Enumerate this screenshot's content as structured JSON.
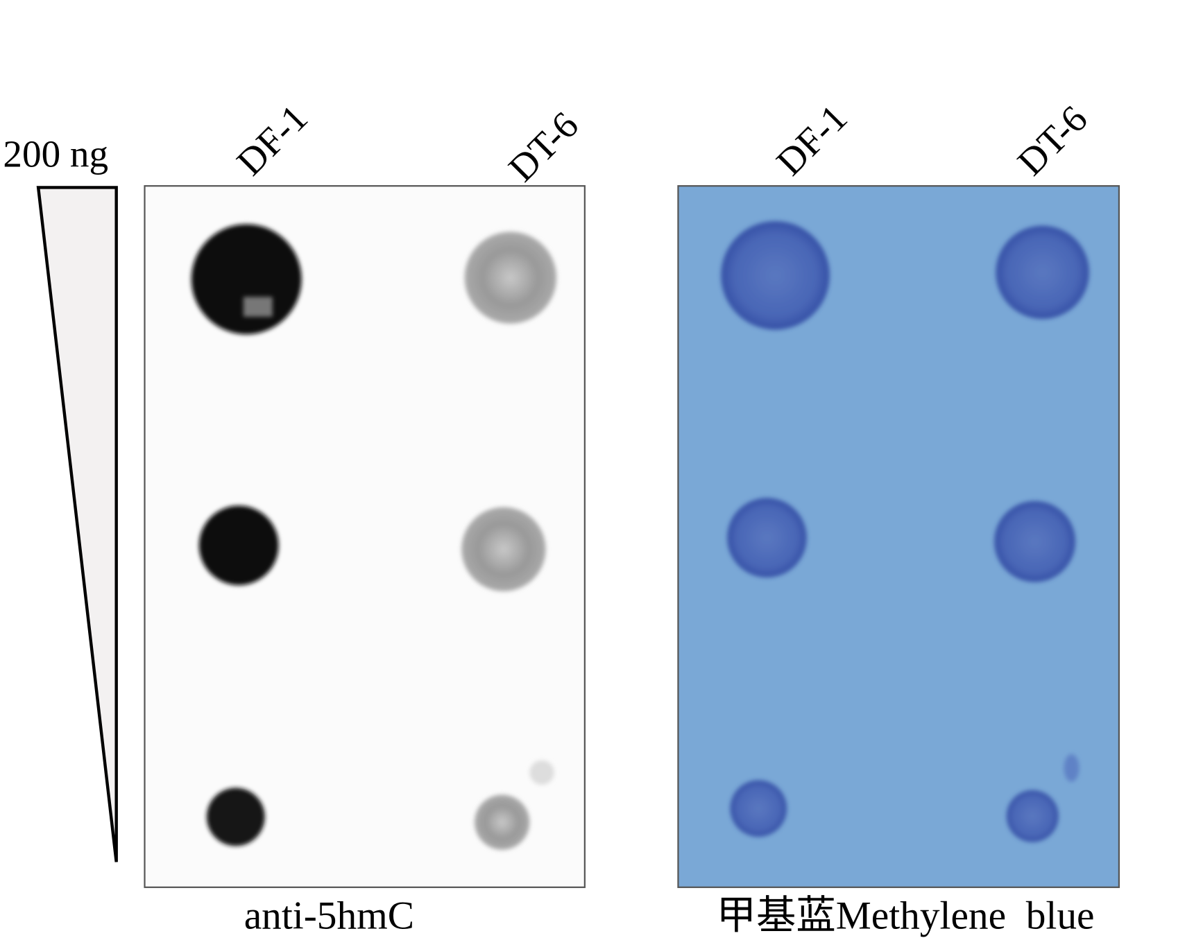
{
  "amount_label": "200 ng",
  "left_panel": {
    "columns": [
      "DF-1",
      "DT-6"
    ],
    "caption": "anti-5hmC",
    "background": "#fbfbfb"
  },
  "right_panel": {
    "columns": [
      "DF-1",
      "DT-6"
    ],
    "caption": "甲基蓝Methylene  blue",
    "background": "#7aa8d6",
    "dot_color": "#3f5fb0"
  }
}
